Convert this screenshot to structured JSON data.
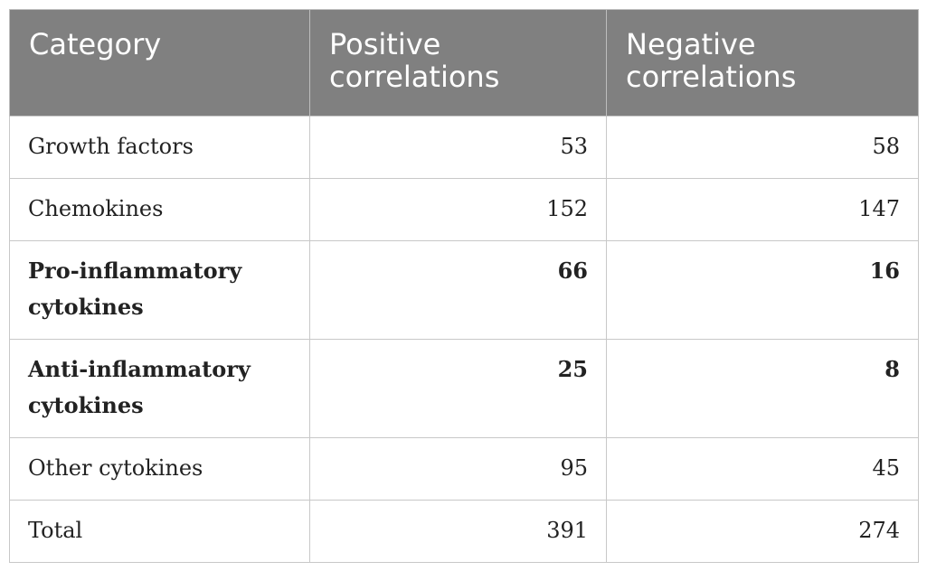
{
  "table": {
    "headers": [
      "Category",
      "Positive correlations",
      "Negative correlations"
    ],
    "rows": [
      {
        "category": "Growth factors",
        "positive": "53",
        "negative": "58",
        "bold": false
      },
      {
        "category": "Chemokines",
        "positive": "152",
        "negative": "147",
        "bold": false
      },
      {
        "category": "Pro-inflammatory cytokines",
        "positive": "66",
        "negative": "16",
        "bold": true
      },
      {
        "category": "Anti-inflammatory cytokines",
        "positive": "25",
        "negative": "8",
        "bold": true
      },
      {
        "category": "Other cytokines",
        "positive": "95",
        "negative": "45",
        "bold": false
      },
      {
        "category": "Total",
        "positive": "391",
        "negative": "274",
        "bold": false
      }
    ]
  }
}
